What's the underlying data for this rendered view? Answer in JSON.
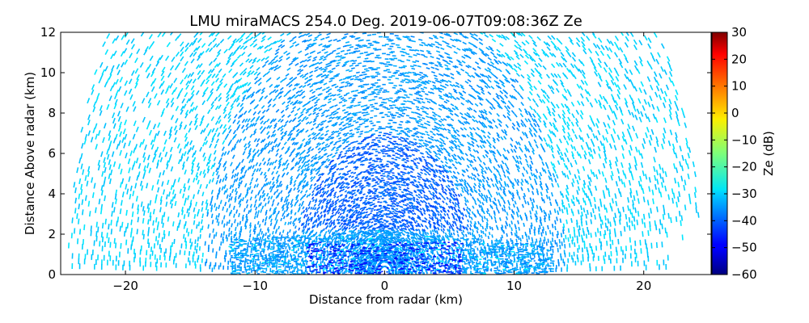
{
  "chart_data": {
    "type": "heatmap",
    "title": "LMU miraMACS 254.0 Deg. 2019-06-07T09:08:36Z  Ze",
    "xlabel": "Distance from radar (km)",
    "ylabel": "Distance Above radar  (km)",
    "xlim": [
      -25,
      25.2
    ],
    "ylim": [
      0,
      12
    ],
    "xticks": [
      -20,
      -10,
      0,
      10,
      20
    ],
    "yticks": [
      0,
      2,
      4,
      6,
      8,
      10,
      12
    ],
    "grid": false,
    "colorbar": {
      "label": "Ze (dB)",
      "range": [
        -60,
        30
      ],
      "ticks": [
        -60,
        -50,
        -40,
        -30,
        -20,
        -10,
        0,
        10,
        20,
        30
      ],
      "colormap": "jet"
    },
    "scan": {
      "type": "RHI",
      "azimuth_deg": 254.0,
      "max_range_km": 24.5,
      "max_height_km": 12,
      "low_level_reflectivity_layer_km": [
        0,
        2.2
      ],
      "typical_ze_dB": {
        "far_range": -30,
        "mid_range": -35,
        "near_radar_aloft": -40,
        "low_layer_core": -45
      }
    }
  }
}
